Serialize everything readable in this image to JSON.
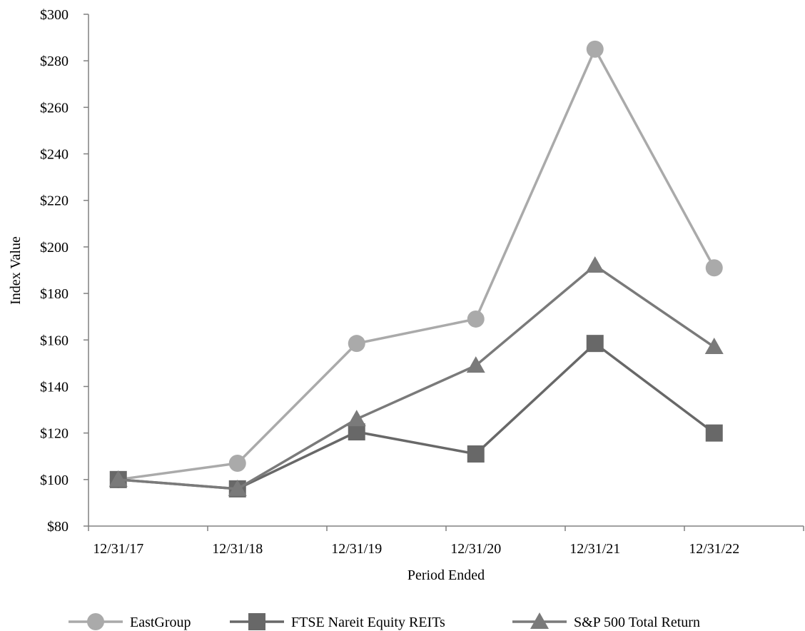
{
  "chart_data": {
    "type": "line",
    "categories": [
      "12/31/17",
      "12/31/18",
      "12/31/19",
      "12/31/20",
      "12/31/21",
      "12/31/22"
    ],
    "xlabel": "Period Ended",
    "ylabel": "Index Value",
    "ylim": [
      80,
      300
    ],
    "yticks": [
      80,
      100,
      120,
      140,
      160,
      180,
      200,
      220,
      240,
      260,
      280,
      300
    ],
    "ytick_labels": [
      "$80",
      "$100",
      "$120",
      "$140",
      "$160",
      "$180",
      "$200",
      "$220",
      "$240",
      "$260",
      "$280",
      "$300"
    ],
    "grid": false,
    "legend_position": "bottom",
    "series": [
      {
        "name": "EastGroup",
        "marker": "circle",
        "color": "#aaaaaa",
        "values": [
          100,
          107,
          158.5,
          169,
          285,
          191
        ]
      },
      {
        "name": "FTSE Nareit Equity REITs",
        "marker": "square",
        "color": "#686868",
        "values": [
          100,
          96,
          120.5,
          111,
          158.5,
          120
        ]
      },
      {
        "name": "S&P 500 Total Return",
        "marker": "triangle",
        "color": "#7a7a7a",
        "values": [
          100,
          96,
          126,
          149,
          192,
          157
        ]
      }
    ]
  }
}
